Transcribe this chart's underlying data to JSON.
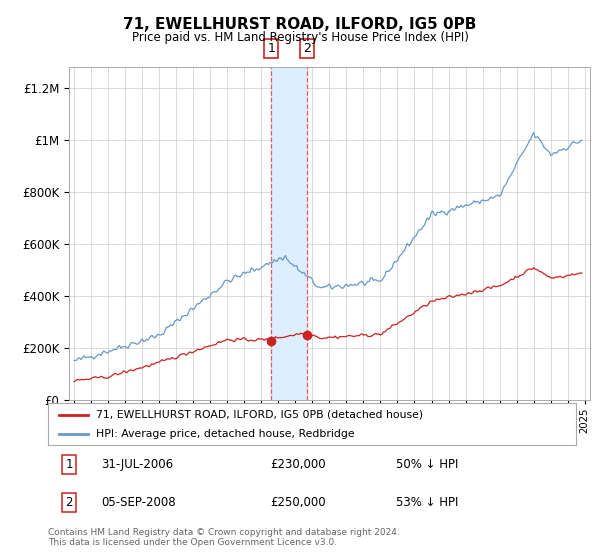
{
  "title": "71, EWELLHURST ROAD, ILFORD, IG5 0PB",
  "subtitle": "Price paid vs. HM Land Registry's House Price Index (HPI)",
  "legend_line1": "71, EWELLHURST ROAD, ILFORD, IG5 0PB (detached house)",
  "legend_line2": "HPI: Average price, detached house, Redbridge",
  "transaction1_label": "1",
  "transaction1_date": "31-JUL-2006",
  "transaction1_price": "£230,000",
  "transaction1_hpi": "50% ↓ HPI",
  "transaction1_year": 2006.58,
  "transaction1_price_val": 230000,
  "transaction2_label": "2",
  "transaction2_date": "05-SEP-2008",
  "transaction2_price": "£250,000",
  "transaction2_hpi": "53% ↓ HPI",
  "transaction2_year": 2008.68,
  "transaction2_price_val": 250000,
  "footer": "Contains HM Land Registry data © Crown copyright and database right 2024.\nThis data is licensed under the Open Government Licence v3.0.",
  "red_color": "#cc2222",
  "blue_color": "#6699cc",
  "shade_color": "#ddeeff",
  "marker_box_color": "#cc2222",
  "ylim": [
    0,
    1280000
  ],
  "xlim_start": 1994.7,
  "xlim_end": 2025.3
}
